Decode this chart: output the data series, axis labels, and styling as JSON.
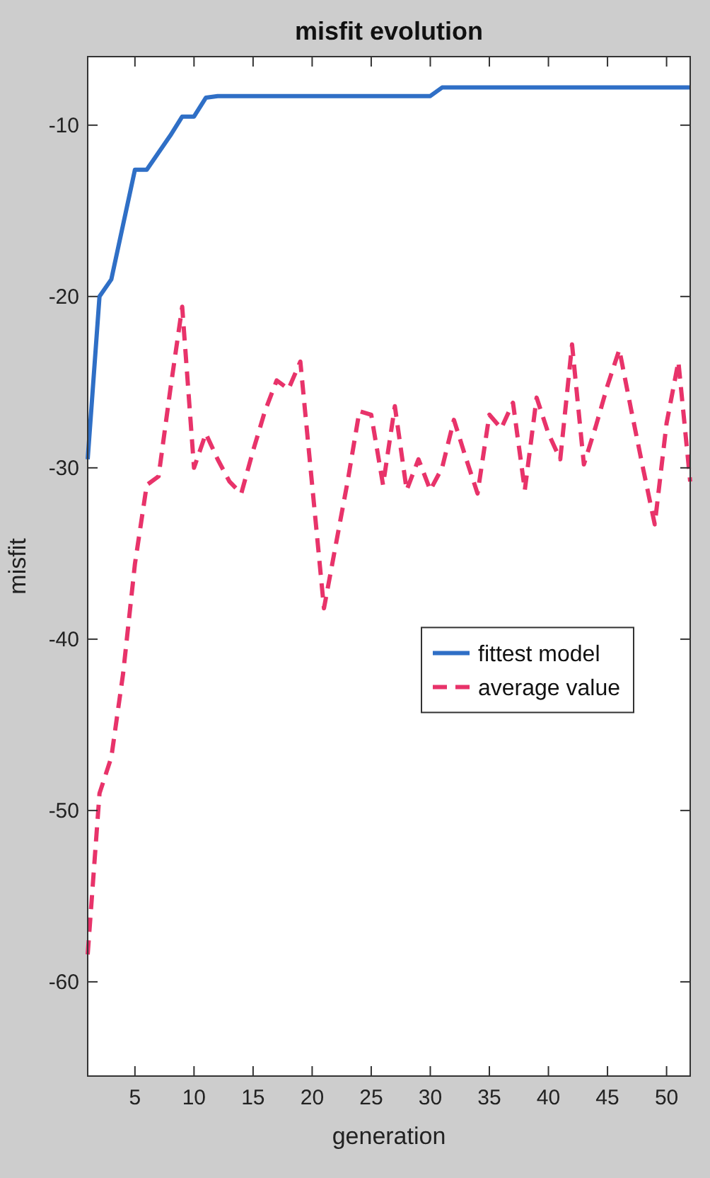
{
  "chart_data": {
    "type": "line",
    "title": "misfit evolution",
    "xlabel": "generation",
    "ylabel": "misfit",
    "x": [
      1,
      2,
      3,
      4,
      5,
      6,
      7,
      8,
      9,
      10,
      11,
      12,
      13,
      14,
      15,
      16,
      17,
      18,
      19,
      20,
      21,
      22,
      23,
      24,
      25,
      26,
      27,
      28,
      29,
      30,
      31,
      32,
      33,
      34,
      35,
      36,
      37,
      38,
      39,
      40,
      41,
      42,
      43,
      44,
      45,
      46,
      47,
      48,
      49,
      50,
      51,
      52
    ],
    "series": [
      {
        "name": "fittest model",
        "color": "#2f6fc6",
        "line_style": "solid",
        "values": [
          -29.5,
          -20,
          -19,
          -15.8,
          -12.6,
          -12.6,
          -11.6,
          -10.6,
          -9.5,
          -9.5,
          -8.4,
          -8.3,
          -8.3,
          -8.3,
          -8.3,
          -8.3,
          -8.3,
          -8.3,
          -8.3,
          -8.3,
          -8.3,
          -8.3,
          -8.3,
          -8.3,
          -8.3,
          -8.3,
          -8.3,
          -8.3,
          -8.3,
          -8.3,
          -7.8,
          -7.8,
          -7.8,
          -7.8,
          -7.8,
          -7.8,
          -7.8,
          -7.8,
          -7.8,
          -7.8,
          -7.8,
          -7.8,
          -7.8,
          -7.8,
          -7.8,
          -7.8,
          -7.8,
          -7.8,
          -7.8,
          -7.8,
          -7.8,
          -7.8
        ]
      },
      {
        "name": "average value",
        "color": "#e8336a",
        "line_style": "dashed",
        "values": [
          -58.4,
          -49,
          -46.9,
          -42,
          -35.6,
          -31,
          -30.5,
          -25.4,
          -20.6,
          -30,
          -28,
          -29.5,
          -30.8,
          -31.5,
          -29,
          -26.7,
          -24.9,
          -25.4,
          -23.8,
          -31,
          -38.2,
          -34.5,
          -30.8,
          -26.7,
          -26.9,
          -31,
          -26.4,
          -31.3,
          -29.5,
          -31.3,
          -30,
          -27.2,
          -29.4,
          -31.5,
          -26.9,
          -27.7,
          -26.2,
          -31.3,
          -25.9,
          -28,
          -29.5,
          -22.8,
          -29.8,
          -27.6,
          -25.2,
          -23.1,
          -26.6,
          -30,
          -33.3,
          -27.4,
          -23.8,
          -30.8
        ]
      }
    ],
    "xlim": [
      1,
      52
    ],
    "xticks": [
      5,
      10,
      15,
      20,
      25,
      30,
      35,
      40,
      45,
      50
    ],
    "ylim": [
      -65.5,
      -6
    ],
    "yticks": [
      -60,
      -50,
      -40,
      -30,
      -20,
      -10
    ],
    "legend": "right"
  }
}
